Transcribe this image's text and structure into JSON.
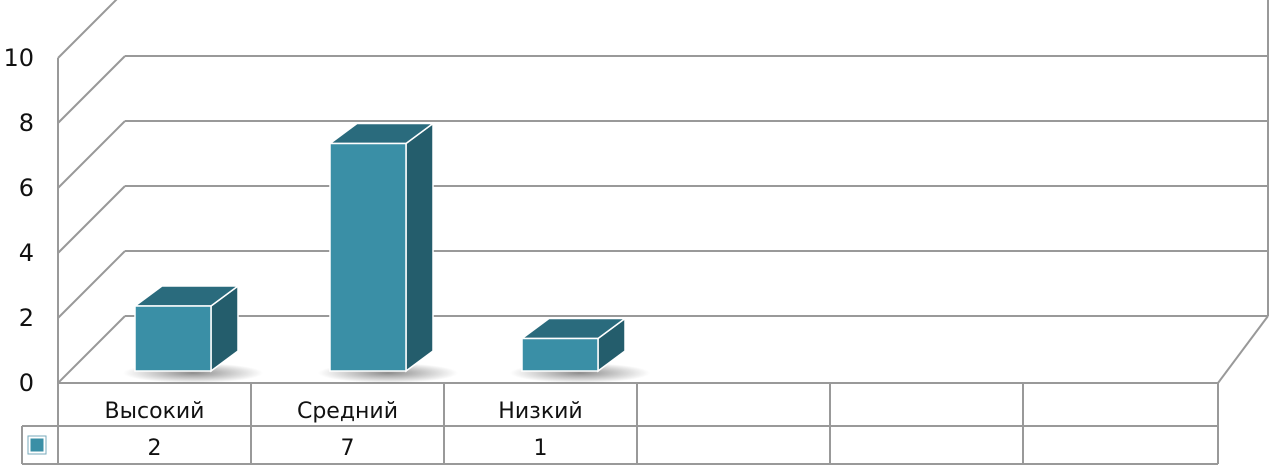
{
  "chart_data": {
    "type": "bar",
    "categories": [
      "Высокий",
      "Средний",
      "Низкий"
    ],
    "values": [
      2,
      7,
      1
    ],
    "ylim": [
      0,
      10
    ],
    "yticks": [
      "0",
      "2",
      "4",
      "6",
      "8",
      "10"
    ],
    "value_labels": [
      "2",
      "7",
      "1"
    ],
    "empty_table_columns": 3,
    "grid": true,
    "three_d": true,
    "legend_placement": "data-table-left",
    "colors": {
      "bar_front": "#3a8fa6",
      "bar_top": "#2a6b7d",
      "bar_side": "#245d6c",
      "grid": "#999999",
      "legend_key": "#3a8fa6"
    }
  }
}
